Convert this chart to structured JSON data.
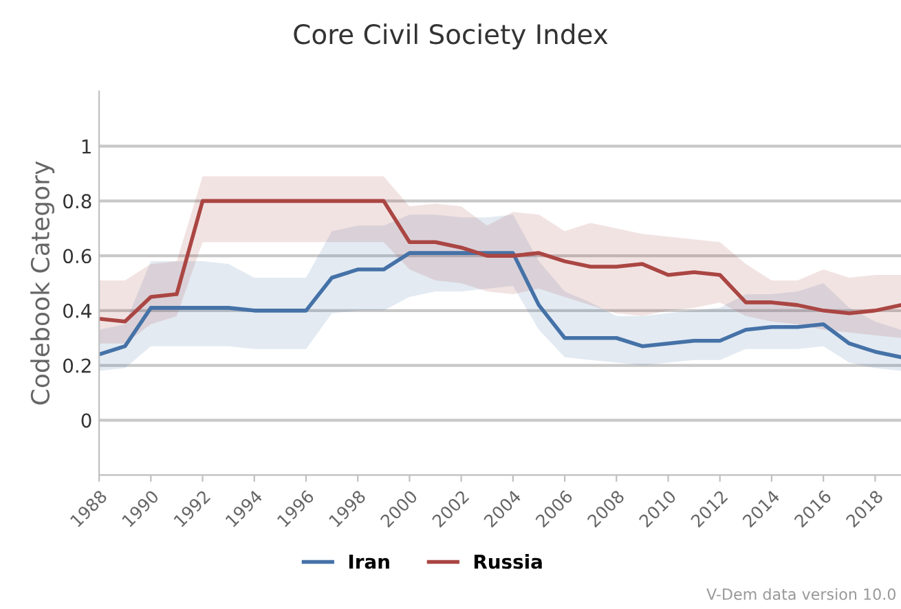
{
  "chart_data": {
    "type": "line",
    "title": "Core Civil Society Index",
    "ylabel": "Codebook Category",
    "x": [
      1988,
      1989,
      1990,
      1991,
      1992,
      1993,
      1994,
      1995,
      1996,
      1997,
      1998,
      1999,
      2000,
      2001,
      2002,
      2003,
      2004,
      2005,
      2006,
      2007,
      2008,
      2009,
      2010,
      2011,
      2012,
      2013,
      2014,
      2015,
      2016,
      2017,
      2018,
      2019
    ],
    "series": [
      {
        "name": "Iran",
        "color": "#4572a7",
        "values": [
          0.24,
          0.27,
          0.41,
          0.41,
          0.41,
          0.41,
          0.4,
          0.4,
          0.4,
          0.52,
          0.55,
          0.55,
          0.61,
          0.61,
          0.61,
          0.61,
          0.61,
          0.42,
          0.3,
          0.3,
          0.3,
          0.27,
          0.28,
          0.29,
          0.29,
          0.33,
          0.34,
          0.34,
          0.35,
          0.28,
          0.25,
          0.23
        ],
        "lower": [
          0.18,
          0.19,
          0.27,
          0.27,
          0.27,
          0.27,
          0.26,
          0.26,
          0.26,
          0.39,
          0.4,
          0.4,
          0.45,
          0.47,
          0.47,
          0.48,
          0.49,
          0.33,
          0.23,
          0.22,
          0.21,
          0.2,
          0.21,
          0.22,
          0.22,
          0.26,
          0.26,
          0.26,
          0.27,
          0.21,
          0.19,
          0.18
        ],
        "upper": [
          0.33,
          0.35,
          0.58,
          0.58,
          0.58,
          0.57,
          0.52,
          0.52,
          0.52,
          0.69,
          0.71,
          0.71,
          0.75,
          0.75,
          0.74,
          0.74,
          0.75,
          0.58,
          0.47,
          0.43,
          0.38,
          0.38,
          0.39,
          0.4,
          0.41,
          0.46,
          0.46,
          0.47,
          0.5,
          0.41,
          0.36,
          0.33
        ]
      },
      {
        "name": "Russia",
        "color": "#aa4643",
        "values": [
          0.37,
          0.36,
          0.45,
          0.46,
          0.8,
          0.8,
          0.8,
          0.8,
          0.8,
          0.8,
          0.8,
          0.8,
          0.65,
          0.65,
          0.63,
          0.6,
          0.6,
          0.61,
          0.58,
          0.56,
          0.56,
          0.57,
          0.53,
          0.54,
          0.53,
          0.43,
          0.43,
          0.42,
          0.4,
          0.39,
          0.4,
          0.42
        ],
        "lower": [
          0.28,
          0.28,
          0.35,
          0.38,
          0.65,
          0.65,
          0.65,
          0.65,
          0.65,
          0.65,
          0.65,
          0.65,
          0.55,
          0.51,
          0.5,
          0.47,
          0.46,
          0.48,
          0.45,
          0.42,
          0.39,
          0.38,
          0.4,
          0.41,
          0.43,
          0.38,
          0.36,
          0.35,
          0.33,
          0.32,
          0.31,
          0.3
        ],
        "upper": [
          0.51,
          0.51,
          0.57,
          0.58,
          0.89,
          0.89,
          0.89,
          0.89,
          0.89,
          0.89,
          0.89,
          0.89,
          0.78,
          0.79,
          0.78,
          0.71,
          0.76,
          0.75,
          0.69,
          0.72,
          0.7,
          0.68,
          0.67,
          0.66,
          0.65,
          0.57,
          0.51,
          0.51,
          0.55,
          0.52,
          0.53,
          0.53
        ]
      }
    ],
    "xlim": [
      1988,
      2019
    ],
    "xticks": [
      1988,
      1990,
      1992,
      1994,
      1996,
      1998,
      2000,
      2002,
      2004,
      2006,
      2008,
      2010,
      2012,
      2014,
      2016,
      2018
    ],
    "ylim": [
      -0.2,
      1.2
    ],
    "yticks": [
      0,
      0.2,
      0.4,
      0.6,
      0.8,
      1
    ],
    "grid": "y",
    "legend": "bottom",
    "marker": "none",
    "line_style": "solid",
    "annotations": [
      "V-Dem data version 10.0"
    ]
  }
}
